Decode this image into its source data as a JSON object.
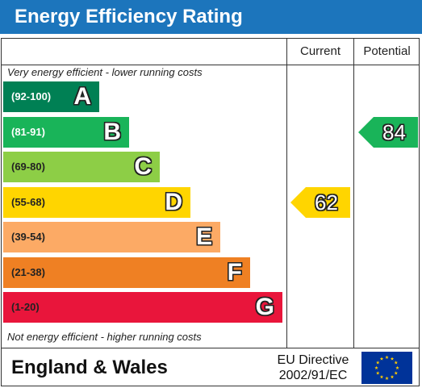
{
  "title": "Energy Efficiency Rating",
  "columns": {
    "current": "Current",
    "potential": "Potential"
  },
  "top_note": "Very energy efficient - lower running costs",
  "bottom_note": "Not energy efficient - higher running costs",
  "footer": {
    "region": "England & Wales",
    "directive_line1": "EU Directive",
    "directive_line2": "2002/91/EC"
  },
  "chart_data": {
    "type": "bar",
    "title": "Energy Efficiency Rating",
    "categories": [
      "(92-100)",
      "(81-91)",
      "(69-80)",
      "(55-68)",
      "(39-54)",
      "(21-38)",
      "(1-20)"
    ],
    "bands": [
      {
        "range": "(92-100)",
        "letter": "A",
        "color": "#008054",
        "range_color": "#ffffff"
      },
      {
        "range": "(81-91)",
        "letter": "B",
        "color": "#19b459",
        "range_color": "#ffffff"
      },
      {
        "range": "(69-80)",
        "letter": "C",
        "color": "#8dce46",
        "range_color": "#222222"
      },
      {
        "range": "(55-68)",
        "letter": "D",
        "color": "#ffd500",
        "range_color": "#222222"
      },
      {
        "range": "(39-54)",
        "letter": "E",
        "color": "#fcaa65",
        "range_color": "#222222"
      },
      {
        "range": "(21-38)",
        "letter": "F",
        "color": "#ef8023",
        "range_color": "#222222"
      },
      {
        "range": "(1-20)",
        "letter": "G",
        "color": "#e9153b",
        "range_color": "#222222"
      }
    ],
    "series": [
      {
        "name": "Current",
        "value": 62,
        "band": "D",
        "color": "#ffd500"
      },
      {
        "name": "Potential",
        "value": 84,
        "band": "B",
        "color": "#19b459"
      }
    ]
  }
}
